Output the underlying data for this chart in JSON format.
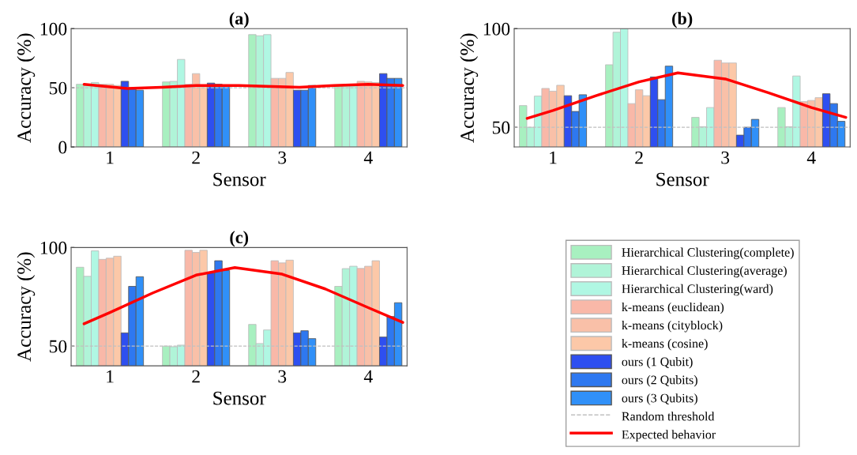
{
  "chart_data": [
    {
      "type": "bar",
      "title": "(a)",
      "xlabel": "Sensor",
      "ylabel": "Accuracy (%)",
      "x": [
        1,
        2,
        3,
        4
      ],
      "xlim": [
        0.55,
        4.45
      ],
      "xticks": [
        1,
        2,
        3,
        4
      ],
      "ylim": [
        0,
        100
      ],
      "yticks": [
        0,
        50,
        100
      ],
      "grid": false,
      "legend": "bottom right",
      "series": [
        {
          "name": "Hierarchical Clustering(complete)",
          "color": "#a8f0c0",
          "values": [
            53,
            55,
            95,
            51.5
          ]
        },
        {
          "name": "Hierarchical Clustering(average)",
          "color": "#b0f4d8",
          "values": [
            52,
            55.5,
            94,
            51.5
          ]
        },
        {
          "name": "Hierarchical Clustering(ward)",
          "color": "#b0f7e3",
          "values": [
            54.5,
            74,
            95,
            51.5
          ]
        },
        {
          "name": "k-means (euclidean)",
          "color": "#f9b8a8",
          "values": [
            53,
            53,
            58,
            55.5
          ]
        },
        {
          "name": "k-means (cityblock)",
          "color": "#f9c0a8",
          "values": [
            53,
            62,
            58,
            55
          ]
        },
        {
          "name": "k-means (cosine)",
          "color": "#fcc8a8",
          "values": [
            52,
            52,
            63,
            54.5
          ]
        },
        {
          "name": "ours (1 Qubit)",
          "color": "#2e4ff0",
          "values": [
            55.5,
            54,
            48,
            62
          ]
        },
        {
          "name": "ours (2 Qubits)",
          "color": "#2e78f0",
          "values": [
            49,
            53,
            48,
            58
          ]
        },
        {
          "name": "ours (3 Qubits)",
          "color": "#3090f8",
          "values": [
            48,
            51.5,
            52,
            58
          ]
        },
        {
          "name": "Expected behavior",
          "type": "line",
          "color": "#ff0000",
          "x": [
            0.7,
            1.2,
            1.6,
            2.0,
            2.5,
            3.2,
            3.6,
            4.0,
            4.4
          ],
          "values": [
            53,
            49.5,
            50.5,
            52,
            52,
            50.5,
            52,
            53,
            52
          ]
        }
      ],
      "ref_lines": [
        {
          "axis": "y",
          "value": 50,
          "label": "Random threshold",
          "color": "#c0c0c0",
          "line_style": "dashed"
        }
      ]
    },
    {
      "type": "bar",
      "title": "(b)",
      "xlabel": "Sensor",
      "ylabel": "Accuracy (%)",
      "x": [
        1,
        2,
        3,
        4
      ],
      "xlim": [
        0.55,
        4.45
      ],
      "xticks": [
        1,
        2,
        3,
        4
      ],
      "ylim": [
        40,
        100
      ],
      "yticks": [
        50,
        100
      ],
      "grid": false,
      "series": [
        {
          "color": "#a8f0c0",
          "values": [
            61,
            81.7,
            55,
            60
          ]
        },
        {
          "color": "#b0f4d8",
          "values": [
            50,
            98.2,
            50.3,
            50.3
          ]
        },
        {
          "color": "#b0f7e3",
          "values": [
            65.8,
            100,
            60,
            76
          ]
        },
        {
          "color": "#f9b8a8",
          "values": [
            69.7,
            62,
            84,
            63
          ]
        },
        {
          "color": "#f9c0a8",
          "values": [
            68.3,
            69,
            82.6,
            63.6
          ]
        },
        {
          "color": "#fcc8a8",
          "values": [
            71.3,
            66,
            82.6,
            65
          ]
        },
        {
          "color": "#2e4ff0",
          "values": [
            66,
            75.5,
            46,
            67
          ]
        },
        {
          "color": "#2e78f0",
          "values": [
            58,
            64,
            50,
            62
          ]
        },
        {
          "color": "#3090f8",
          "values": [
            66.5,
            81,
            54,
            53
          ]
        },
        {
          "type": "line",
          "color": "#ff0000",
          "x": [
            0.7,
            1.0,
            1.5,
            2.0,
            2.45,
            3.0,
            3.5,
            4.0,
            4.4
          ],
          "values": [
            54.5,
            58.5,
            66,
            73,
            77.6,
            74.5,
            67.5,
            60,
            55
          ]
        }
      ],
      "ref_lines": [
        {
          "axis": "y",
          "value": 50,
          "color": "#c0c0c0",
          "line_style": "dashed"
        }
      ]
    },
    {
      "type": "bar",
      "title": "(c)",
      "xlabel": "Sensor",
      "ylabel": "Accuracy (%)",
      "x": [
        1,
        2,
        3,
        4
      ],
      "xlim": [
        0.55,
        4.45
      ],
      "xticks": [
        1,
        2,
        3,
        4
      ],
      "ylim": [
        40,
        100
      ],
      "yticks": [
        50,
        100
      ],
      "grid": false,
      "series": [
        {
          "color": "#a8f0c0",
          "values": [
            90,
            50,
            61,
            80.3
          ]
        },
        {
          "color": "#b0f4d8",
          "values": [
            85.4,
            49.7,
            51.3,
            89.3
          ]
        },
        {
          "color": "#b0f7e3",
          "values": [
            98.3,
            50.5,
            58.2,
            90.5
          ]
        },
        {
          "color": "#f9b8a8",
          "values": [
            94,
            98.6,
            93.3,
            89.4
          ]
        },
        {
          "color": "#f9c0a8",
          "values": [
            94.6,
            97.5,
            92.2,
            90.5
          ]
        },
        {
          "color": "#fcc8a8",
          "values": [
            95.6,
            98.6,
            93.6,
            93.3
          ]
        },
        {
          "color": "#2e4ff0",
          "values": [
            56.7,
            87,
            56.7,
            54.6
          ]
        },
        {
          "color": "#2e78f0",
          "values": [
            80.3,
            93.3,
            57.8,
            65
          ]
        },
        {
          "color": "#3090f8",
          "values": [
            85.2,
            88.3,
            53.8,
            72
          ]
        },
        {
          "type": "line",
          "color": "#ff0000",
          "x": [
            0.7,
            1.0,
            1.5,
            2.0,
            2.45,
            3.0,
            3.5,
            4.0,
            4.4
          ],
          "values": [
            61.3,
            67,
            77,
            86,
            89.8,
            86.5,
            79,
            69.5,
            62
          ]
        }
      ],
      "ref_lines": [
        {
          "axis": "y",
          "value": 50,
          "color": "#c0c0c0",
          "line_style": "dashed"
        }
      ]
    }
  ]
}
